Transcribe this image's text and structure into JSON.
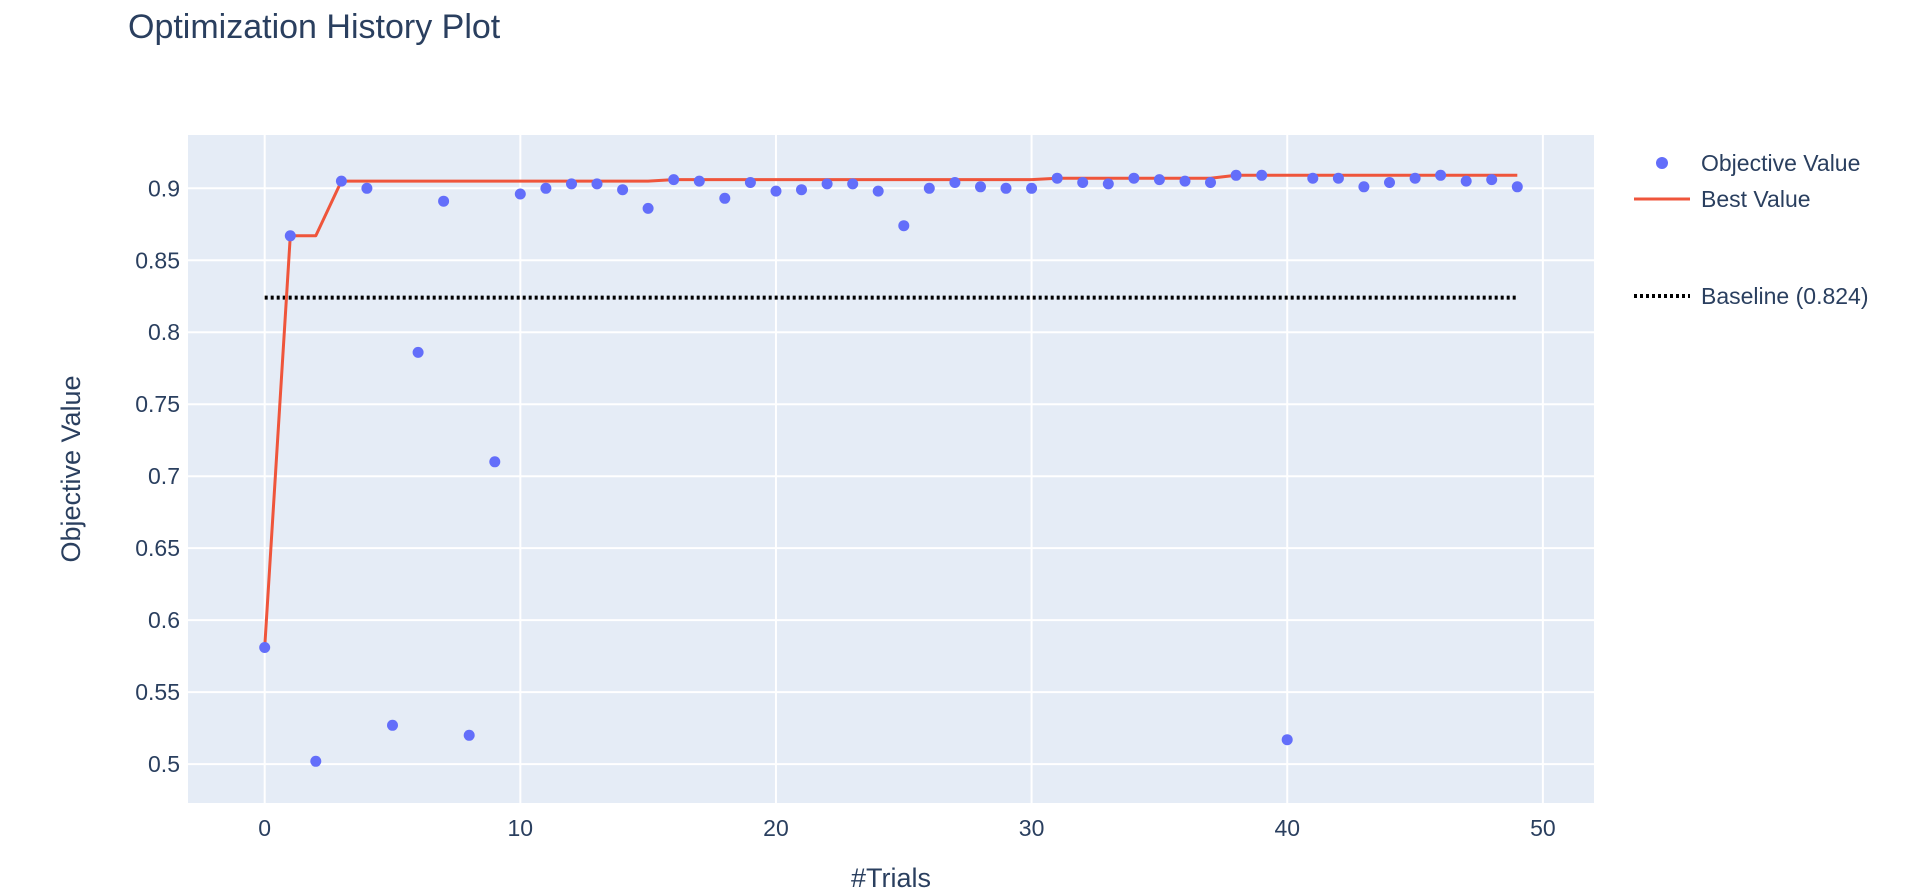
{
  "chart_data": {
    "type": "scatter",
    "title": "Optimization History Plot",
    "xlabel": "#Trials",
    "ylabel": "Objective Value",
    "xlim": [
      -3,
      52
    ],
    "ylim": [
      0.473,
      0.937
    ],
    "x_ticks": [
      0,
      10,
      20,
      30,
      40,
      50
    ],
    "y_ticks": [
      0.5,
      0.55,
      0.6,
      0.65,
      0.7,
      0.75,
      0.8,
      0.85,
      0.9
    ],
    "grid": true,
    "legend_position": "top-right",
    "colors": {
      "plot_bg": "#E5ECF6",
      "grid": "#ffffff",
      "objective": "#636EFA",
      "best": "#EF553B",
      "baseline": "#000000",
      "text": "#2a3f5f"
    },
    "series": [
      {
        "name": "Objective Value",
        "mode": "markers",
        "x": [
          0,
          1,
          2,
          3,
          4,
          5,
          6,
          7,
          8,
          9,
          10,
          11,
          12,
          13,
          14,
          15,
          16,
          17,
          18,
          19,
          20,
          21,
          22,
          23,
          24,
          25,
          26,
          27,
          28,
          29,
          30,
          31,
          32,
          33,
          34,
          35,
          36,
          37,
          38,
          39,
          40,
          41,
          42,
          43,
          44,
          45,
          46,
          47,
          48,
          49
        ],
        "y": [
          0.581,
          0.867,
          0.502,
          0.905,
          0.9,
          0.527,
          0.786,
          0.891,
          0.52,
          0.71,
          0.896,
          0.9,
          0.903,
          0.903,
          0.899,
          0.886,
          0.906,
          0.905,
          0.893,
          0.904,
          0.898,
          0.899,
          0.903,
          0.903,
          0.898,
          0.874,
          0.9,
          0.904,
          0.901,
          0.9,
          0.9,
          0.907,
          0.904,
          0.903,
          0.907,
          0.906,
          0.905,
          0.904,
          0.909,
          0.909,
          0.517,
          0.907,
          0.907,
          0.901,
          0.904,
          0.907,
          0.909,
          0.905,
          0.906,
          0.901
        ]
      },
      {
        "name": "Best Value",
        "mode": "line",
        "x": [
          0,
          1,
          2,
          3,
          4,
          5,
          6,
          7,
          8,
          9,
          10,
          11,
          12,
          13,
          14,
          15,
          16,
          17,
          18,
          19,
          20,
          21,
          22,
          23,
          24,
          25,
          26,
          27,
          28,
          29,
          30,
          31,
          32,
          33,
          34,
          35,
          36,
          37,
          38,
          39,
          40,
          41,
          42,
          43,
          44,
          45,
          46,
          47,
          48,
          49
        ],
        "y": [
          0.581,
          0.867,
          0.867,
          0.905,
          0.905,
          0.905,
          0.905,
          0.905,
          0.905,
          0.905,
          0.905,
          0.905,
          0.905,
          0.905,
          0.905,
          0.905,
          0.906,
          0.906,
          0.906,
          0.906,
          0.906,
          0.906,
          0.906,
          0.906,
          0.906,
          0.906,
          0.906,
          0.906,
          0.906,
          0.906,
          0.906,
          0.907,
          0.907,
          0.907,
          0.907,
          0.907,
          0.907,
          0.907,
          0.909,
          0.909,
          0.909,
          0.909,
          0.909,
          0.909,
          0.909,
          0.909,
          0.909,
          0.909,
          0.909,
          0.909
        ]
      },
      {
        "name": "Baseline (0.824)",
        "mode": "dotted-line",
        "x": [
          0,
          49
        ],
        "y": [
          0.824,
          0.824
        ]
      }
    ]
  }
}
